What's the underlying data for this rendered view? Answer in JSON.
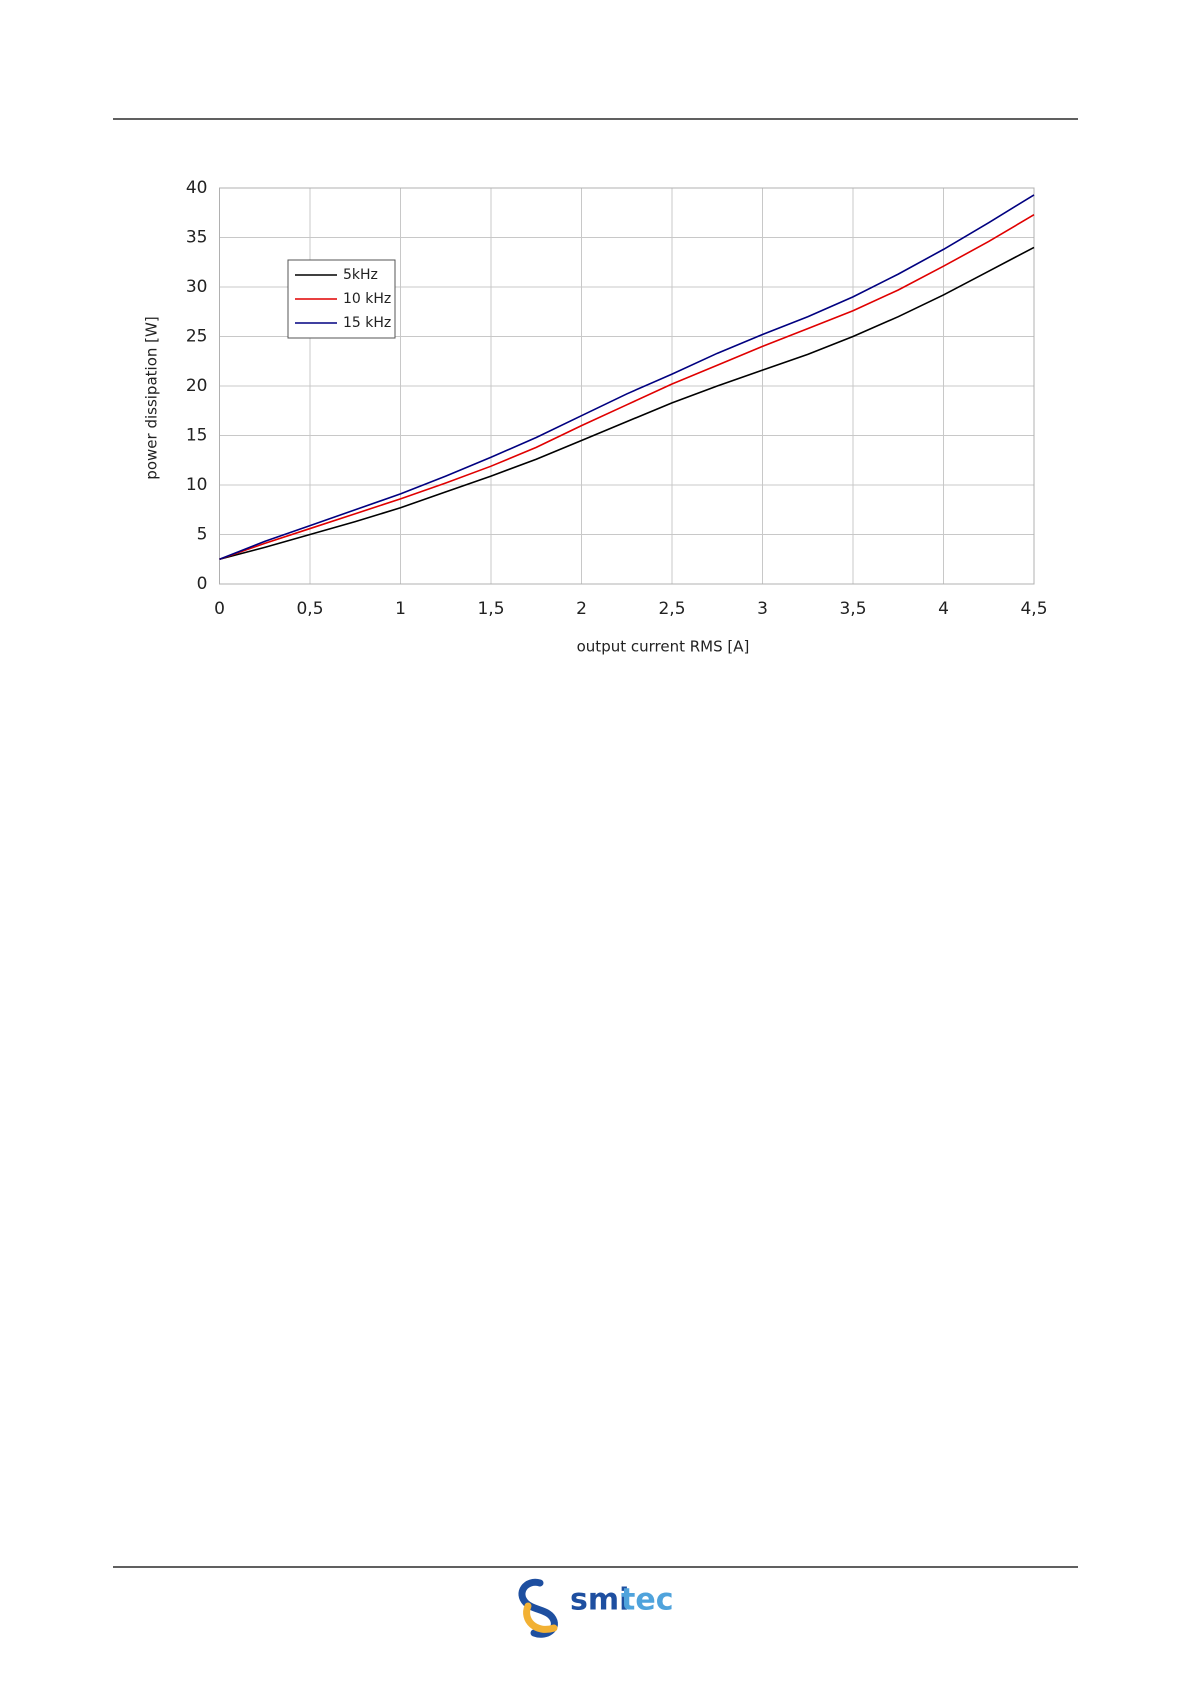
{
  "chart_data": {
    "type": "line",
    "x_label": "output current RMS [A]",
    "y_label": "power dissipation [W]",
    "x": [
      0,
      0.25,
      0.5,
      0.75,
      1,
      1.25,
      1.5,
      1.75,
      2,
      2.25,
      2.5,
      2.75,
      3,
      3.25,
      3.5,
      3.75,
      4,
      4.25,
      4.5
    ],
    "series": [
      {
        "name": "5kHz",
        "color": "#000000",
        "values": [
          2.5,
          3.7,
          5.0,
          6.3,
          7.7,
          9.3,
          10.9,
          12.6,
          14.5,
          16.4,
          18.3,
          20.0,
          21.6,
          23.2,
          25.0,
          27.0,
          29.2,
          31.6,
          34.0
        ]
      },
      {
        "name": "10 kHz",
        "color": "#e00000",
        "values": [
          2.5,
          4.1,
          5.6,
          7.1,
          8.6,
          10.2,
          11.9,
          13.8,
          16.0,
          18.1,
          20.2,
          22.1,
          24.0,
          25.8,
          27.6,
          29.7,
          32.1,
          34.6,
          37.3
        ]
      },
      {
        "name": "15 kHz",
        "color": "#000080",
        "values": [
          2.5,
          4.3,
          5.9,
          7.5,
          9.1,
          10.9,
          12.8,
          14.8,
          17.0,
          19.2,
          21.2,
          23.3,
          25.2,
          27.0,
          29.0,
          31.3,
          33.8,
          36.5,
          39.3
        ]
      }
    ],
    "xlim": [
      0,
      4.5
    ],
    "xticks": [
      0,
      {
        "value": 0.5,
        "label": "0,5"
      },
      1,
      {
        "value": 1.5,
        "label": "1,5"
      },
      2,
      {
        "value": 2.5,
        "label": "2,5"
      },
      3,
      {
        "value": 3.5,
        "label": "3,5"
      },
      4,
      {
        "value": 4.5,
        "label": "4,5"
      }
    ],
    "ylim": [
      0,
      40
    ],
    "yticks": [
      0,
      5,
      10,
      15,
      20,
      25,
      30,
      35,
      40
    ],
    "grid": true,
    "legend": "upper left"
  },
  "footer": {
    "logo_parts": [
      "smi",
      "tec"
    ]
  }
}
